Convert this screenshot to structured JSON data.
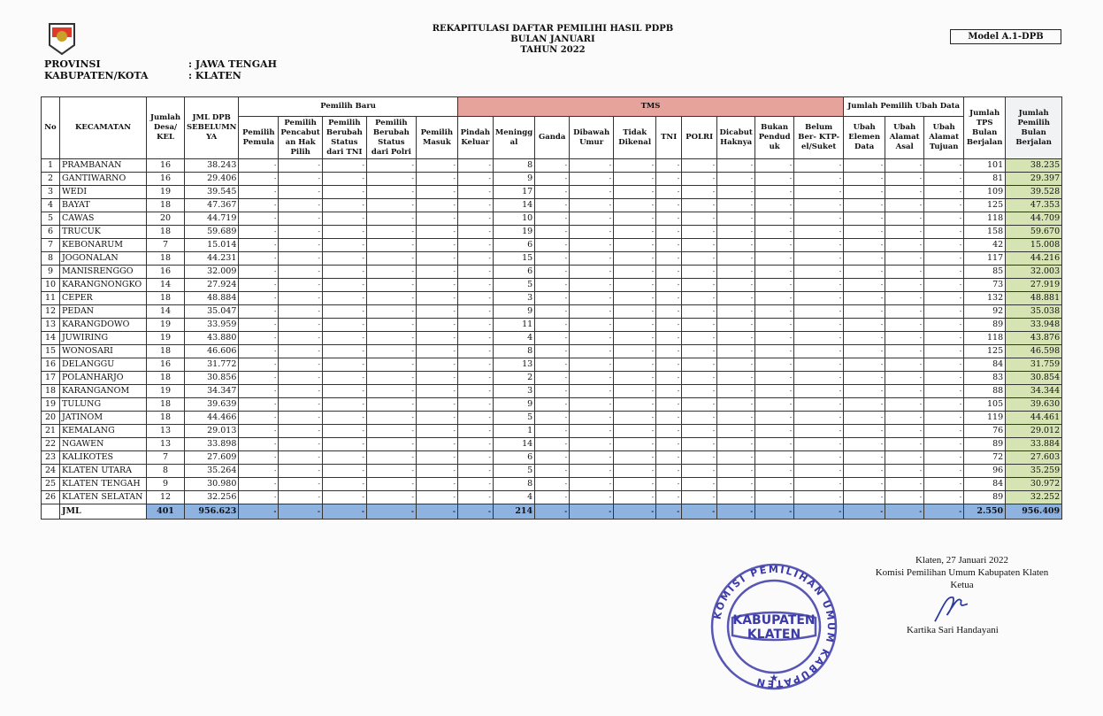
{
  "header": {
    "title_lines": [
      "REKAPITULASI DAFTAR PEMILIHI HASIL PDPB",
      "BULAN JANUARI",
      "TAHUN 2022"
    ],
    "model": "Model A.1-DPB",
    "provinsi_label": "PROVINSI",
    "provinsi_value": ": JAWA TENGAH",
    "kabupaten_label": "KABUPATEN/KOTA",
    "kabupaten_value": ": KLATEN"
  },
  "table": {
    "colors": {
      "tms": "#e6a39c",
      "total": "#8fb3e0",
      "green": "#d6e4b4"
    },
    "groups": {
      "pemilih_baru": "Pemilih Baru",
      "tms": "TMS",
      "ubah_data": "Jumlah Pemilih Ubah Data"
    },
    "columns": [
      "No",
      "KECAMATAN",
      "Jumlah Desa/ KEL",
      "JML DPB SEBELUMN YA",
      "Pemilih Pemula",
      "Pemilih Pencabut an Hak Pilih",
      "Pemilih Berubah Status dari TNI",
      "Pemilih Berubah Status dari Polri",
      "Pemilih Masuk",
      "Pindah Keluar",
      "Meningg al",
      "Ganda",
      "Dibawah Umur",
      "Tidak Dikenal",
      "TNI",
      "POLRI",
      "Dicabut Haknya",
      "Bukan Pendud uk",
      "Belum Ber- KTP- el/Suket",
      "Ubah Elemen Data",
      "Ubah Alamat Asal",
      "Ubah Alamat Tujuan",
      "Jumlah TPS Bulan Berjalan",
      "Jumlah Pemilih Bulan Berjalan"
    ],
    "rows": [
      [
        "1",
        "PRAMBANAN",
        "16",
        "38.243",
        "-",
        "-",
        "-",
        "-",
        "-",
        "-",
        "8",
        "-",
        "-",
        "-",
        "-",
        "-",
        "-",
        "-",
        "-",
        "-",
        "-",
        "-",
        "101",
        "38.235"
      ],
      [
        "2",
        "GANTIWARNO",
        "16",
        "29.406",
        "-",
        "-",
        "-",
        "-",
        "-",
        "-",
        "9",
        "-",
        "-",
        "-",
        "-",
        "-",
        "-",
        "-",
        "-",
        "-",
        "-",
        "-",
        "81",
        "29.397"
      ],
      [
        "3",
        "WEDI",
        "19",
        "39.545",
        "-",
        "-",
        "-",
        "-",
        "-",
        "-",
        "17",
        "-",
        "-",
        "-",
        "-",
        "-",
        "-",
        "-",
        "-",
        "-",
        "-",
        "-",
        "109",
        "39.528"
      ],
      [
        "4",
        "BAYAT",
        "18",
        "47.367",
        "-",
        "-",
        "-",
        "-",
        "-",
        "-",
        "14",
        "-",
        "-",
        "-",
        "-",
        "-",
        "-",
        "-",
        "-",
        "-",
        "-",
        "-",
        "125",
        "47.353"
      ],
      [
        "5",
        "CAWAS",
        "20",
        "44.719",
        "-",
        "-",
        "-",
        "-",
        "-",
        "-",
        "10",
        "-",
        "-",
        "-",
        "-",
        "-",
        "-",
        "-",
        "-",
        "-",
        "-",
        "-",
        "118",
        "44.709"
      ],
      [
        "6",
        "TRUCUK",
        "18",
        "59.689",
        "-",
        "-",
        "-",
        "-",
        "-",
        "-",
        "19",
        "-",
        "-",
        "-",
        "-",
        "-",
        "-",
        "-",
        "-",
        "-",
        "-",
        "-",
        "158",
        "59.670"
      ],
      [
        "7",
        "KEBONARUM",
        "7",
        "15.014",
        "-",
        "-",
        "-",
        "-",
        "-",
        "-",
        "6",
        "-",
        "-",
        "-",
        "-",
        "-",
        "-",
        "-",
        "-",
        "-",
        "-",
        "-",
        "42",
        "15.008"
      ],
      [
        "8",
        "JOGONALAN",
        "18",
        "44.231",
        "-",
        "-",
        "-",
        "-",
        "-",
        "-",
        "15",
        "-",
        "-",
        "-",
        "-",
        "-",
        "-",
        "-",
        "-",
        "-",
        "-",
        "-",
        "117",
        "44.216"
      ],
      [
        "9",
        "MANISRENGGO",
        "16",
        "32.009",
        "-",
        "-",
        "-",
        "-",
        "-",
        "-",
        "6",
        "-",
        "-",
        "-",
        "-",
        "-",
        "-",
        "-",
        "-",
        "-",
        "-",
        "-",
        "85",
        "32.003"
      ],
      [
        "10",
        "KARANGNONGKO",
        "14",
        "27.924",
        "-",
        "-",
        "-",
        "-",
        "-",
        "-",
        "5",
        "-",
        "-",
        "-",
        "-",
        "-",
        "-",
        "-",
        "-",
        "-",
        "-",
        "-",
        "73",
        "27.919"
      ],
      [
        "11",
        "CEPER",
        "18",
        "48.884",
        "-",
        "-",
        "-",
        "-",
        "-",
        "-",
        "3",
        "-",
        "-",
        "-",
        "-",
        "-",
        "-",
        "-",
        "-",
        "-",
        "-",
        "-",
        "132",
        "48.881"
      ],
      [
        "12",
        "PEDAN",
        "14",
        "35.047",
        "-",
        "-",
        "-",
        "-",
        "-",
        "-",
        "9",
        "-",
        "-",
        "-",
        "-",
        "-",
        "-",
        "-",
        "-",
        "-",
        "-",
        "-",
        "92",
        "35.038"
      ],
      [
        "13",
        "KARANGDOWO",
        "19",
        "33.959",
        "-",
        "-",
        "-",
        "-",
        "-",
        "-",
        "11",
        "-",
        "-",
        "-",
        "-",
        "-",
        "-",
        "-",
        "-",
        "-",
        "-",
        "-",
        "89",
        "33.948"
      ],
      [
        "14",
        "JUWIRING",
        "19",
        "43.880",
        "-",
        "-",
        "-",
        "-",
        "-",
        "-",
        "4",
        "-",
        "-",
        "-",
        "-",
        "-",
        "-",
        "-",
        "-",
        "-",
        "-",
        "-",
        "118",
        "43.876"
      ],
      [
        "15",
        "WONOSARI",
        "18",
        "46.606",
        "-",
        "-",
        "-",
        "-",
        "-",
        "-",
        "8",
        "-",
        "-",
        "-",
        "-",
        "-",
        "-",
        "-",
        "-",
        "-",
        "-",
        "-",
        "125",
        "46.598"
      ],
      [
        "16",
        "DELANGGU",
        "16",
        "31.772",
        "-",
        "-",
        "-",
        "-",
        "-",
        "-",
        "13",
        "-",
        "-",
        "-",
        "-",
        "-",
        "-",
        "-",
        "-",
        "-",
        "-",
        "-",
        "84",
        "31.759"
      ],
      [
        "17",
        "POLANHARJO",
        "18",
        "30.856",
        "-",
        "-",
        "-",
        "-",
        "-",
        "-",
        "2",
        "-",
        "-",
        "-",
        "-",
        "-",
        "-",
        "-",
        "-",
        "-",
        "-",
        "-",
        "83",
        "30.854"
      ],
      [
        "18",
        "KARANGANOM",
        "19",
        "34.347",
        "-",
        "-",
        "-",
        "-",
        "-",
        "-",
        "3",
        "-",
        "-",
        "-",
        "-",
        "-",
        "-",
        "-",
        "-",
        "-",
        "-",
        "-",
        "88",
        "34.344"
      ],
      [
        "19",
        "TULUNG",
        "18",
        "39.639",
        "-",
        "-",
        "-",
        "-",
        "-",
        "-",
        "9",
        "-",
        "-",
        "-",
        "-",
        "-",
        "-",
        "-",
        "-",
        "-",
        "-",
        "-",
        "105",
        "39.630"
      ],
      [
        "20",
        "JATINOM",
        "18",
        "44.466",
        "-",
        "-",
        "-",
        "-",
        "-",
        "-",
        "5",
        "-",
        "-",
        "-",
        "-",
        "-",
        "-",
        "-",
        "-",
        "-",
        "-",
        "-",
        "119",
        "44.461"
      ],
      [
        "21",
        "KEMALANG",
        "13",
        "29.013",
        "-",
        "-",
        "-",
        "-",
        "-",
        "-",
        "1",
        "-",
        "-",
        "-",
        "-",
        "-",
        "-",
        "-",
        "-",
        "-",
        "-",
        "-",
        "76",
        "29.012"
      ],
      [
        "22",
        "NGAWEN",
        "13",
        "33.898",
        "-",
        "-",
        "-",
        "-",
        "-",
        "-",
        "14",
        "-",
        "-",
        "-",
        "-",
        "-",
        "-",
        "-",
        "-",
        "-",
        "-",
        "-",
        "89",
        "33.884"
      ],
      [
        "23",
        "KALIKOTES",
        "7",
        "27.609",
        "-",
        "-",
        "-",
        "-",
        "-",
        "-",
        "6",
        "-",
        "-",
        "-",
        "-",
        "-",
        "-",
        "-",
        "-",
        "-",
        "-",
        "-",
        "72",
        "27.603"
      ],
      [
        "24",
        "KLATEN UTARA",
        "8",
        "35.264",
        "-",
        "-",
        "-",
        "-",
        "-",
        "-",
        "5",
        "-",
        "-",
        "-",
        "-",
        "-",
        "-",
        "-",
        "-",
        "-",
        "-",
        "-",
        "96",
        "35.259"
      ],
      [
        "25",
        "KLATEN TENGAH",
        "9",
        "30.980",
        "-",
        "-",
        "-",
        "-",
        "-",
        "-",
        "8",
        "-",
        "-",
        "-",
        "-",
        "-",
        "-",
        "-",
        "-",
        "-",
        "-",
        "-",
        "84",
        "30.972"
      ],
      [
        "26",
        "KLATEN SELATAN",
        "12",
        "32.256",
        "-",
        "-",
        "-",
        "-",
        "-",
        "-",
        "4",
        "-",
        "-",
        "-",
        "-",
        "-",
        "-",
        "-",
        "-",
        "-",
        "-",
        "-",
        "89",
        "32.252"
      ]
    ],
    "total": [
      "",
      "JML",
      "401",
      "956.623",
      "-",
      "-",
      "-",
      "-",
      "-",
      "-",
      "214",
      "-",
      "-",
      "-",
      "-",
      "-",
      "-",
      "-",
      "-",
      "-",
      "-",
      "-",
      "2.550",
      "956.409"
    ]
  },
  "signature": {
    "place_date": "Klaten, 27 Januari 2022",
    "institution": "Komisi Pemilihan Umum Kabupaten Klaten",
    "position": "Ketua",
    "name": "Kartika Sari Handayani",
    "stamp_text": "KOMISI PEMILIHAN UMUM KABUPATEN",
    "stamp_center": [
      "KABUPATEN",
      "KLATEN"
    ]
  }
}
